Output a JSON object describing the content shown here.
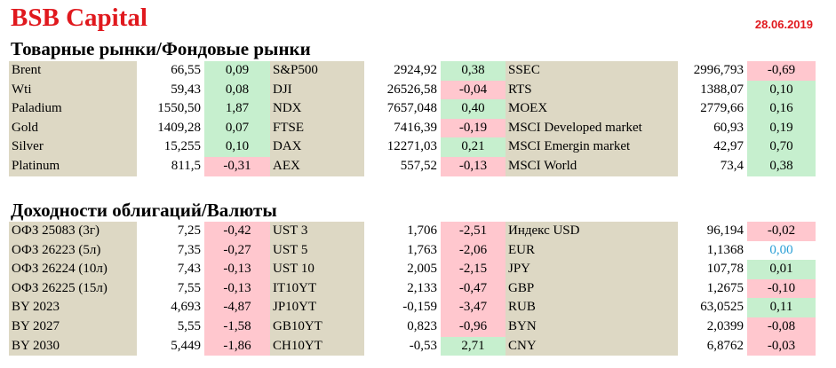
{
  "header": {
    "title": "BSB Capital",
    "date": "28.06.2019"
  },
  "sections": [
    {
      "title": "Товарные рынки/Фондовые рынки",
      "rows": [
        [
          {
            "name": "Brent",
            "value": "66,55",
            "change": "0,09",
            "state": "pos"
          },
          {
            "name": "S&P500",
            "value": "2924,92",
            "change": "0,38",
            "state": "pos"
          },
          {
            "name": "SSEC",
            "value": "2996,793",
            "change": "-0,69",
            "state": "neg"
          }
        ],
        [
          {
            "name": "Wti",
            "value": "59,43",
            "change": "0,08",
            "state": "pos"
          },
          {
            "name": "DJI",
            "value": "26526,58",
            "change": "-0,04",
            "state": "neg"
          },
          {
            "name": "RTS",
            "value": "1388,07",
            "change": "0,10",
            "state": "pos"
          }
        ],
        [
          {
            "name": "Paladium",
            "value": "1550,50",
            "change": "1,87",
            "state": "pos"
          },
          {
            "name": "NDX",
            "value": "7657,048",
            "change": "0,40",
            "state": "pos"
          },
          {
            "name": "MOEX",
            "value": "2779,66",
            "change": "0,16",
            "state": "pos"
          }
        ],
        [
          {
            "name": "Gold",
            "value": "1409,28",
            "change": "0,07",
            "state": "pos"
          },
          {
            "name": "FTSE",
            "value": "7416,39",
            "change": "-0,19",
            "state": "neg"
          },
          {
            "name": "MSCI Developed market",
            "value": "60,93",
            "change": "0,19",
            "state": "pos"
          }
        ],
        [
          {
            "name": "Silver",
            "value": "15,255",
            "change": "0,10",
            "state": "pos"
          },
          {
            "name": "DAX",
            "value": "12271,03",
            "change": "0,21",
            "state": "pos"
          },
          {
            "name": "MSCI Emergin market",
            "value": "42,97",
            "change": "0,70",
            "state": "pos"
          }
        ],
        [
          {
            "name": "Platinum",
            "value": "811,5",
            "change": "-0,31",
            "state": "neg"
          },
          {
            "name": "AEX",
            "value": "557,52",
            "change": "-0,13",
            "state": "neg"
          },
          {
            "name": "MSCI World",
            "value": "73,4",
            "change": "0,38",
            "state": "pos"
          }
        ]
      ]
    },
    {
      "title": "Доходности облигаций/Валюты",
      "rows": [
        [
          {
            "name": "ОФЗ 25083 (3г)",
            "value": "7,25",
            "change": "-0,42",
            "state": "neg"
          },
          {
            "name": "UST 3",
            "value": "1,706",
            "change": "-2,51",
            "state": "neg"
          },
          {
            "name": "Индекс USD",
            "value": "96,194",
            "change": "-0,02",
            "state": "neg"
          }
        ],
        [
          {
            "name": "ОФЗ 26223 (5л)",
            "value": "7,35",
            "change": "-0,27",
            "state": "neg"
          },
          {
            "name": "UST 5",
            "value": "1,763",
            "change": "-2,06",
            "state": "neg"
          },
          {
            "name": "EUR",
            "value": "1,1368",
            "change": "0,00",
            "state": "zero"
          }
        ],
        [
          {
            "name": "ОФЗ 26224 (10л)",
            "value": "7,43",
            "change": "-0,13",
            "state": "neg"
          },
          {
            "name": "UST 10",
            "value": "2,005",
            "change": "-2,15",
            "state": "neg"
          },
          {
            "name": "JPY",
            "value": "107,78",
            "change": "0,01",
            "state": "pos"
          }
        ],
        [
          {
            "name": "ОФЗ 26225 (15л)",
            "value": "7,55",
            "change": "-0,13",
            "state": "neg"
          },
          {
            "name": "IT10YT",
            "value": "2,133",
            "change": "-0,47",
            "state": "neg"
          },
          {
            "name": "GBP",
            "value": "1,2675",
            "change": "-0,10",
            "state": "neg"
          }
        ],
        [
          {
            "name": "BY 2023",
            "value": "4,693",
            "change": "-4,87",
            "state": "neg"
          },
          {
            "name": "JP10YT",
            "value": "-0,159",
            "change": "-3,47",
            "state": "neg"
          },
          {
            "name": "RUB",
            "value": "63,0525",
            "change": "0,11",
            "state": "pos"
          }
        ],
        [
          {
            "name": "BY 2027",
            "value": "5,55",
            "change": "-1,58",
            "state": "neg"
          },
          {
            "name": "GB10YT",
            "value": "0,823",
            "change": "-0,96",
            "state": "neg"
          },
          {
            "name": "BYN",
            "value": "2,0399",
            "change": "-0,08",
            "state": "neg"
          }
        ],
        [
          {
            "name": "BY 2030",
            "value": "5,449",
            "change": "-1,86",
            "state": "neg"
          },
          {
            "name": "CH10YT",
            "value": "-0,53",
            "change": "2,71",
            "state": "pos"
          },
          {
            "name": "CNY",
            "value": "6,8762",
            "change": "-0,03",
            "state": "neg"
          }
        ]
      ]
    }
  ]
}
